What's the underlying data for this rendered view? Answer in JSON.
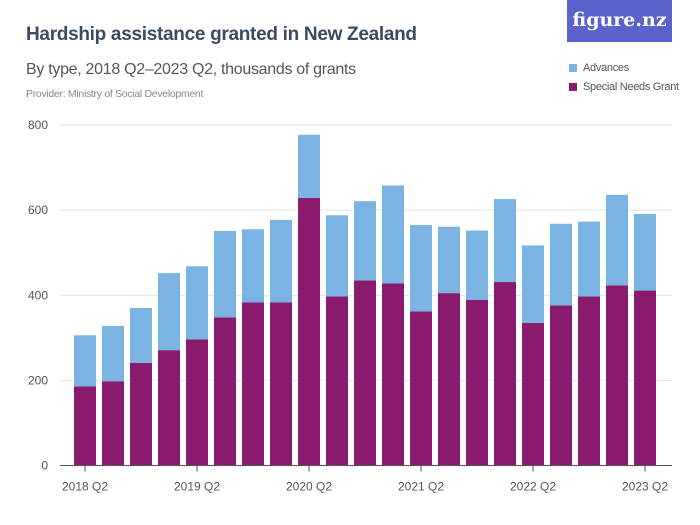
{
  "header": {
    "title": "Hardship assistance granted in New Zealand",
    "subtitle": "By type, 2018 Q2–2023 Q2, thousands of grants",
    "provider": "Provider: Ministry of Social Development",
    "logo": "figure.nz"
  },
  "chart_data": {
    "type": "bar",
    "stacked": true,
    "title": "Hardship assistance granted in New Zealand",
    "subtitle": "By type, 2018 Q2–2023 Q2, thousands of grants",
    "xlabel": "",
    "ylabel": "",
    "ylim": [
      0,
      800
    ],
    "yticks": [
      0,
      200,
      400,
      600,
      800
    ],
    "grid": true,
    "legend_position": "top-right",
    "categories": [
      "2018 Q2",
      "2018 Q3",
      "2018 Q4",
      "2019 Q1",
      "2019 Q2",
      "2019 Q3",
      "2019 Q4",
      "2020 Q1",
      "2020 Q2",
      "2020 Q3",
      "2020 Q4",
      "2021 Q1",
      "2021 Q2",
      "2021 Q3",
      "2021 Q4",
      "2022 Q1",
      "2022 Q2",
      "2022 Q3",
      "2022 Q4",
      "2023 Q1",
      "2023 Q2"
    ],
    "xtick_labels": [
      "2018 Q2",
      "2019 Q2",
      "2020 Q2",
      "2021 Q2",
      "2022 Q2",
      "2023 Q2"
    ],
    "series": [
      {
        "name": "Special Needs Grant",
        "color": "#8a1a6e",
        "values": [
          186,
          198,
          241,
          271,
          296,
          348,
          383,
          383,
          629,
          397,
          435,
          428,
          362,
          405,
          389,
          431,
          335,
          376,
          397,
          423,
          411
        ]
      },
      {
        "name": "Advances",
        "color": "#7bb3e2",
        "values": [
          120,
          130,
          129,
          181,
          172,
          203,
          172,
          194,
          148,
          191,
          186,
          230,
          203,
          156,
          163,
          195,
          182,
          192,
          176,
          213,
          180
        ]
      }
    ]
  }
}
